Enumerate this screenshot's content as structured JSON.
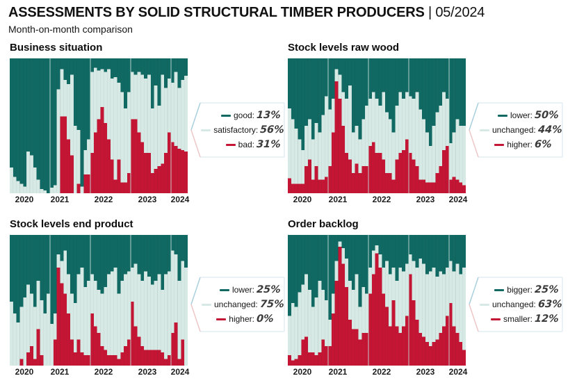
{
  "header": {
    "title": "ASSESSMENTS BY SOLID STRUCTURAL TIMBER PRODUCERS",
    "separator": "|",
    "period": "05/2024",
    "subtitle": "Month-on-month comparison"
  },
  "colors": {
    "teal": "#116963",
    "mint": "#d7e9e5",
    "red": "#c41534",
    "legend_border": "#d6e6ee",
    "legend_pointer_top": "#a9cfdd",
    "legend_pointer_bottom": "#eec6c8"
  },
  "chart_data": [
    {
      "type": "bar",
      "subtype": "stacked-100-percent",
      "title": "Business situation",
      "x_range": [
        "2020-01",
        "2024-05"
      ],
      "x_tick_labels": [
        "2020",
        "2021",
        "2022",
        "2023",
        "2024"
      ],
      "ylim": [
        0,
        100
      ],
      "grid": false,
      "legend_position": "right",
      "stack_order": "top-to-bottom",
      "categories": [
        "2020-01",
        "2020-02",
        "2020-03",
        "2020-04",
        "2020-05",
        "2020-06",
        "2020-07",
        "2020-08",
        "2020-09",
        "2020-10",
        "2020-11",
        "2020-12",
        "2021-01",
        "2021-02",
        "2021-03",
        "2021-04",
        "2021-05",
        "2021-06",
        "2021-07",
        "2021-08",
        "2021-09",
        "2021-10",
        "2021-11",
        "2021-12",
        "2022-01",
        "2022-02",
        "2022-03",
        "2022-04",
        "2022-05",
        "2022-06",
        "2022-07",
        "2022-08",
        "2022-09",
        "2022-10",
        "2022-11",
        "2022-12",
        "2023-01",
        "2023-02",
        "2023-03",
        "2023-04",
        "2023-05",
        "2023-06",
        "2023-07",
        "2023-08",
        "2023-09",
        "2023-10",
        "2023-11",
        "2023-12",
        "2024-01",
        "2024-02",
        "2024-03",
        "2024-04",
        "2024-05"
      ],
      "series": [
        {
          "name": "good",
          "color_key": "teal",
          "values": [
            81,
            88,
            91,
            93,
            95,
            69,
            72,
            81,
            90,
            97,
            98,
            100,
            96,
            94,
            23,
            8,
            16,
            19,
            12,
            50,
            53,
            95,
            68,
            60,
            10,
            7,
            9,
            8,
            10,
            8,
            15,
            14,
            18,
            25,
            37,
            25,
            10,
            12,
            10,
            12,
            15,
            12,
            37,
            20,
            35,
            12,
            22,
            15,
            18,
            10,
            22,
            16,
            13
          ]
        },
        {
          "name": "satisfactory",
          "color_key": "mint",
          "values": [
            19,
            12,
            9,
            7,
            5,
            31,
            28,
            19,
            10,
            3,
            2,
            0,
            4,
            6,
            77,
            35,
            27,
            41,
            60,
            50,
            40,
            5,
            18,
            26,
            60,
            48,
            36,
            28,
            38,
            52,
            60,
            76,
            57,
            67,
            55,
            60,
            35,
            33,
            45,
            50,
            55,
            58,
            48,
            62,
            45,
            66,
            48,
            40,
            44,
            55,
            45,
            52,
            56
          ]
        },
        {
          "name": "bad",
          "color_key": "red",
          "values": [
            0,
            0,
            0,
            0,
            0,
            0,
            0,
            0,
            0,
            0,
            0,
            0,
            0,
            0,
            0,
            57,
            57,
            40,
            28,
            0,
            7,
            0,
            14,
            14,
            30,
            45,
            55,
            64,
            52,
            40,
            25,
            10,
            25,
            8,
            8,
            15,
            55,
            55,
            45,
            38,
            30,
            30,
            15,
            18,
            20,
            22,
            30,
            45,
            38,
            35,
            33,
            32,
            31
          ]
        }
      ],
      "legend": [
        {
          "label": "good:",
          "value": "13%"
        },
        {
          "label": "satisfactory:",
          "value": "56%"
        },
        {
          "label": "bad:",
          "value": "31%"
        }
      ]
    },
    {
      "type": "bar",
      "subtype": "stacked-100-percent",
      "title": "Stock levels raw wood",
      "x_range": [
        "2020-01",
        "2024-05"
      ],
      "x_tick_labels": [
        "2020",
        "2021",
        "2022",
        "2023",
        "2024"
      ],
      "ylim": [
        0,
        100
      ],
      "grid": false,
      "legend_position": "right",
      "stack_order": "top-to-bottom",
      "categories": [
        "2020-01",
        "2020-02",
        "2020-03",
        "2020-04",
        "2020-05",
        "2020-06",
        "2020-07",
        "2020-08",
        "2020-09",
        "2020-10",
        "2020-11",
        "2020-12",
        "2021-01",
        "2021-02",
        "2021-03",
        "2021-04",
        "2021-05",
        "2021-06",
        "2021-07",
        "2021-08",
        "2021-09",
        "2021-10",
        "2021-11",
        "2021-12",
        "2022-01",
        "2022-02",
        "2022-03",
        "2022-04",
        "2022-05",
        "2022-06",
        "2022-07",
        "2022-08",
        "2022-09",
        "2022-10",
        "2022-11",
        "2022-12",
        "2023-01",
        "2023-02",
        "2023-03",
        "2023-04",
        "2023-05",
        "2023-06",
        "2023-07",
        "2023-08",
        "2023-09",
        "2023-10",
        "2023-11",
        "2023-12",
        "2024-01",
        "2024-02",
        "2024-03",
        "2024-04",
        "2024-05"
      ],
      "series": [
        {
          "name": "lower",
          "color_key": "teal",
          "values": [
            37,
            45,
            52,
            60,
            68,
            50,
            45,
            60,
            48,
            55,
            42,
            28,
            38,
            30,
            8,
            12,
            25,
            30,
            20,
            55,
            50,
            60,
            45,
            35,
            30,
            25,
            30,
            35,
            25,
            40,
            45,
            55,
            35,
            25,
            30,
            25,
            28,
            30,
            25,
            38,
            45,
            55,
            65,
            50,
            40,
            35,
            25,
            30,
            63,
            55,
            45,
            50,
            50
          ]
        },
        {
          "name": "unchanged",
          "color_key": "mint",
          "values": [
            52,
            48,
            41,
            33,
            25,
            30,
            30,
            30,
            32,
            35,
            48,
            60,
            42,
            25,
            9,
            18,
            25,
            40,
            55,
            30,
            28,
            25,
            35,
            45,
            35,
            37,
            40,
            35,
            50,
            45,
            40,
            35,
            40,
            45,
            38,
            35,
            42,
            45,
            55,
            52,
            45,
            37,
            27,
            42,
            45,
            45,
            43,
            35,
            27,
            33,
            45,
            42,
            44
          ]
        },
        {
          "name": "higher",
          "color_key": "red",
          "values": [
            11,
            7,
            7,
            7,
            7,
            20,
            25,
            10,
            20,
            10,
            10,
            12,
            20,
            45,
            83,
            70,
            50,
            30,
            25,
            15,
            22,
            15,
            20,
            20,
            35,
            38,
            30,
            30,
            25,
            15,
            15,
            10,
            25,
            30,
            32,
            40,
            30,
            25,
            20,
            10,
            10,
            8,
            8,
            8,
            15,
            20,
            32,
            35,
            10,
            12,
            10,
            8,
            6
          ]
        }
      ],
      "legend": [
        {
          "label": "lower:",
          "value": "50%"
        },
        {
          "label": "unchanged:",
          "value": "44%"
        },
        {
          "label": "higher:",
          "value": "6%"
        }
      ]
    },
    {
      "type": "bar",
      "subtype": "stacked-100-percent",
      "title": "Stock levels end product",
      "x_range": [
        "2020-01",
        "2024-05"
      ],
      "x_tick_labels": [
        "2020",
        "2021",
        "2022",
        "2023",
        "2024"
      ],
      "ylim": [
        0,
        100
      ],
      "grid": false,
      "legend_position": "right",
      "stack_order": "top-to-bottom",
      "categories": [
        "2020-01",
        "2020-02",
        "2020-03",
        "2020-04",
        "2020-05",
        "2020-06",
        "2020-07",
        "2020-08",
        "2020-09",
        "2020-10",
        "2020-11",
        "2020-12",
        "2021-01",
        "2021-02",
        "2021-03",
        "2021-04",
        "2021-05",
        "2021-06",
        "2021-07",
        "2021-08",
        "2021-09",
        "2021-10",
        "2021-11",
        "2021-12",
        "2022-01",
        "2022-02",
        "2022-03",
        "2022-04",
        "2022-05",
        "2022-06",
        "2022-07",
        "2022-08",
        "2022-09",
        "2022-10",
        "2022-11",
        "2022-12",
        "2023-01",
        "2023-02",
        "2023-03",
        "2023-04",
        "2023-05",
        "2023-06",
        "2023-07",
        "2023-08",
        "2023-09",
        "2023-10",
        "2023-11",
        "2023-12",
        "2024-01",
        "2024-02",
        "2024-03",
        "2024-04",
        "2024-05"
      ],
      "series": [
        {
          "name": "lower",
          "color_key": "teal",
          "values": [
            51,
            60,
            67,
            55,
            48,
            38,
            45,
            55,
            35,
            50,
            60,
            45,
            68,
            60,
            15,
            20,
            12,
            30,
            45,
            52,
            30,
            25,
            40,
            35,
            30,
            35,
            42,
            45,
            40,
            30,
            28,
            25,
            45,
            35,
            30,
            28,
            25,
            22,
            30,
            35,
            28,
            32,
            38,
            35,
            30,
            42,
            30,
            28,
            12,
            15,
            35,
            20,
            25
          ]
        },
        {
          "name": "unchanged",
          "color_key": "mint",
          "values": [
            49,
            40,
            33,
            40,
            52,
            52,
            40,
            40,
            37,
            42,
            40,
            55,
            32,
            20,
            10,
            17,
            33,
            30,
            35,
            38,
            50,
            65,
            52,
            57,
            30,
            35,
            33,
            40,
            48,
            62,
            64,
            67,
            50,
            55,
            55,
            52,
            26,
            48,
            48,
            50,
            60,
            56,
            50,
            53,
            58,
            48,
            65,
            64,
            63,
            52,
            60,
            60,
            75
          ]
        },
        {
          "name": "higher",
          "color_key": "red",
          "values": [
            0,
            0,
            0,
            5,
            0,
            10,
            15,
            5,
            28,
            8,
            0,
            0,
            0,
            20,
            75,
            63,
            55,
            40,
            20,
            10,
            20,
            10,
            8,
            8,
            40,
            30,
            25,
            15,
            12,
            8,
            8,
            8,
            5,
            10,
            15,
            20,
            49,
            30,
            22,
            15,
            12,
            12,
            12,
            12,
            12,
            10,
            5,
            8,
            25,
            33,
            5,
            20,
            0
          ]
        }
      ],
      "legend": [
        {
          "label": "lower:",
          "value": "25%"
        },
        {
          "label": "unchanged:",
          "value": "75%"
        },
        {
          "label": "higher:",
          "value": "0%"
        }
      ]
    },
    {
      "type": "bar",
      "subtype": "stacked-100-percent",
      "title": "Order backlog",
      "x_range": [
        "2020-01",
        "2024-05"
      ],
      "x_tick_labels": [
        "2020",
        "2021",
        "2022",
        "2023",
        "2024"
      ],
      "ylim": [
        0,
        100
      ],
      "grid": false,
      "legend_position": "right",
      "stack_order": "top-to-bottom",
      "categories": [
        "2020-01",
        "2020-02",
        "2020-03",
        "2020-04",
        "2020-05",
        "2020-06",
        "2020-07",
        "2020-08",
        "2020-09",
        "2020-10",
        "2020-11",
        "2020-12",
        "2021-01",
        "2021-02",
        "2021-03",
        "2021-04",
        "2021-05",
        "2021-06",
        "2021-07",
        "2021-08",
        "2021-09",
        "2021-10",
        "2021-11",
        "2021-12",
        "2022-01",
        "2022-02",
        "2022-03",
        "2022-04",
        "2022-05",
        "2022-06",
        "2022-07",
        "2022-08",
        "2022-09",
        "2022-10",
        "2022-11",
        "2022-12",
        "2023-01",
        "2023-02",
        "2023-03",
        "2023-04",
        "2023-05",
        "2023-06",
        "2023-07",
        "2023-08",
        "2023-09",
        "2023-10",
        "2023-11",
        "2023-12",
        "2024-01",
        "2024-02",
        "2024-03",
        "2024-04",
        "2024-05"
      ],
      "series": [
        {
          "name": "bigger",
          "color_key": "teal",
          "values": [
            62,
            52,
            55,
            44,
            38,
            30,
            42,
            55,
            48,
            35,
            42,
            50,
            65,
            45,
            20,
            5,
            10,
            18,
            35,
            42,
            30,
            55,
            40,
            45,
            25,
            12,
            8,
            15,
            25,
            20,
            30,
            25,
            35,
            25,
            28,
            22,
            15,
            20,
            25,
            18,
            22,
            30,
            28,
            25,
            32,
            28,
            30,
            25,
            20,
            28,
            22,
            30,
            25
          ]
        },
        {
          "name": "unchanged",
          "color_key": "mint",
          "values": [
            30,
            44,
            40,
            48,
            42,
            48,
            48,
            35,
            44,
            55,
            38,
            35,
            20,
            15,
            15,
            4,
            12,
            22,
            30,
            30,
            42,
            25,
            35,
            30,
            20,
            18,
            6,
            10,
            20,
            35,
            40,
            25,
            35,
            50,
            42,
            40,
            15,
            30,
            40,
            57,
            56,
            52,
            57,
            57,
            48,
            47,
            40,
            37,
            32,
            42,
            53,
            52,
            63
          ]
        },
        {
          "name": "smaller",
          "color_key": "red",
          "values": [
            8,
            4,
            5,
            8,
            20,
            22,
            10,
            10,
            8,
            10,
            20,
            15,
            15,
            40,
            65,
            91,
            78,
            60,
            35,
            28,
            28,
            20,
            25,
            25,
            55,
            70,
            86,
            75,
            55,
            45,
            30,
            50,
            30,
            25,
            30,
            38,
            70,
            50,
            35,
            25,
            22,
            18,
            15,
            18,
            20,
            25,
            30,
            38,
            48,
            30,
            25,
            18,
            12
          ]
        }
      ],
      "legend": [
        {
          "label": "bigger:",
          "value": "25%"
        },
        {
          "label": "unchanged:",
          "value": "63%"
        },
        {
          "label": "smaller:",
          "value": "12%"
        }
      ]
    }
  ],
  "x_axis": {
    "years": [
      "2020",
      "2021",
      "2022",
      "2023",
      "2024"
    ],
    "positions_pct": [
      7.5,
      27.5,
      52,
      76.5,
      95
    ]
  }
}
